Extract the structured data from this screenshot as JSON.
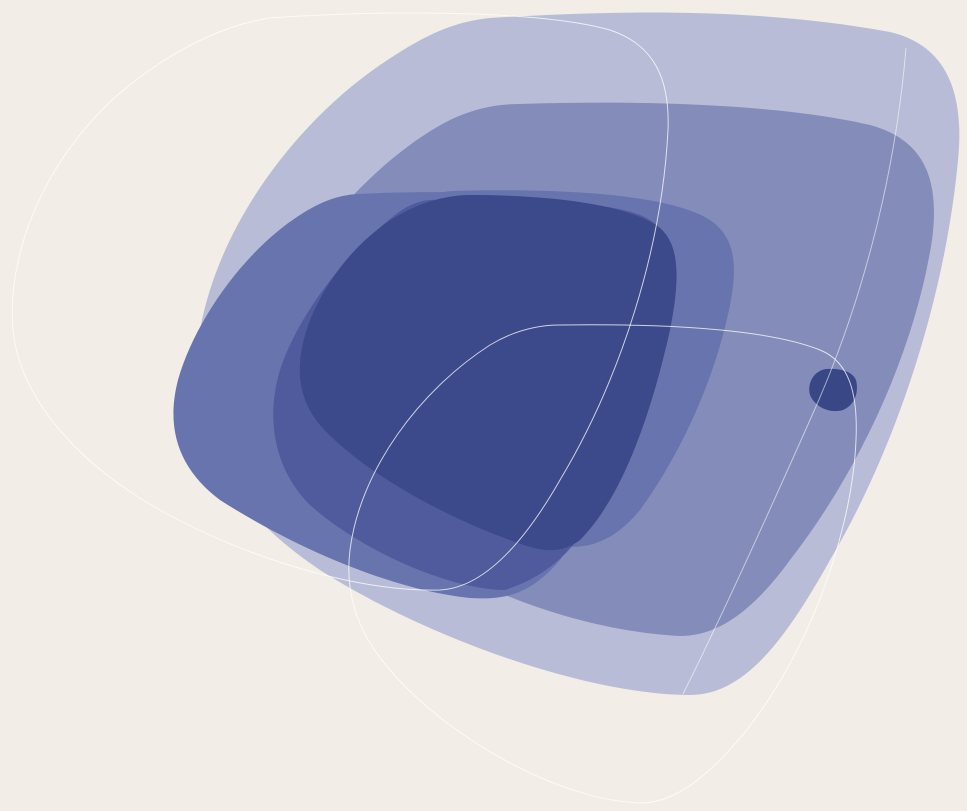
{
  "artwork": {
    "background_color": "#f2ede6",
    "palette": {
      "largest_blob": "#b8bcd6",
      "large_blob": "#848cba",
      "medium_blob": "#6874ad",
      "inner_blob": "#4b5799",
      "core_blob": "#3c4a8c",
      "dot": "#394786",
      "outline": "#ffffff"
    },
    "shape_count": 10
  }
}
